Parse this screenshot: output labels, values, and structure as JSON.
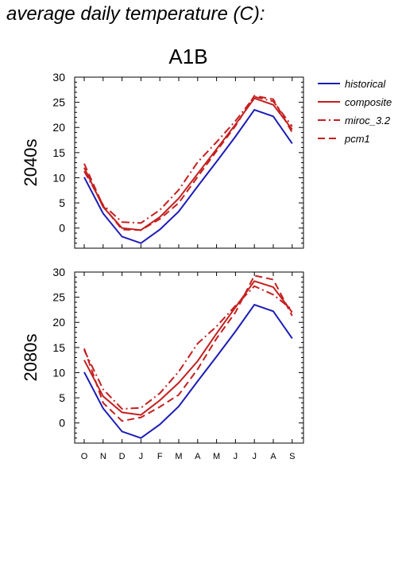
{
  "page_title": "average daily temperature (C):",
  "chart_data": {
    "type": "line",
    "title": "A1B",
    "categories": [
      "O",
      "N",
      "D",
      "J",
      "F",
      "M",
      "A",
      "M",
      "J",
      "J",
      "A",
      "S"
    ],
    "ylim": [
      -4,
      30
    ],
    "yticks": [
      0,
      5,
      10,
      15,
      20,
      25,
      30
    ],
    "grid": false,
    "legend_position": "right",
    "legend": [
      {
        "name": "historical",
        "color": "#1c1cb8",
        "dash": "solid"
      },
      {
        "name": "composite",
        "color": "#c42020",
        "dash": "solid"
      },
      {
        "name": "miroc_3.2",
        "color": "#c42020",
        "dash": "dashdot"
      },
      {
        "name": "pcm1",
        "color": "#c42020",
        "dash": "dash"
      }
    ],
    "panels": [
      {
        "ylabel": "2040s",
        "series": [
          {
            "name": "historical",
            "values": [
              10.1,
              2.9,
              -1.7,
              -3.0,
              -0.3,
              3.3,
              8.3,
              13.2,
              18.2,
              23.5,
              22.2,
              16.8
            ]
          },
          {
            "name": "composite",
            "values": [
              12.0,
              4.2,
              0.0,
              -0.4,
              2.2,
              5.9,
              10.8,
              15.7,
              20.6,
              25.8,
              24.5,
              19.6
            ]
          },
          {
            "name": "miroc_3.2",
            "values": [
              11.3,
              4.6,
              1.2,
              1.0,
              3.6,
              7.6,
              13.1,
              17.1,
              21.3,
              26.1,
              25.2,
              20.2
            ]
          },
          {
            "name": "pcm1",
            "values": [
              12.8,
              4.4,
              -0.3,
              -0.4,
              1.8,
              5.0,
              10.2,
              15.3,
              20.3,
              26.3,
              25.6,
              19.0
            ]
          }
        ]
      },
      {
        "ylabel": "2080s",
        "series": [
          {
            "name": "historical",
            "values": [
              10.1,
              2.9,
              -1.7,
              -3.0,
              -0.3,
              3.3,
              8.3,
              13.2,
              18.2,
              23.5,
              22.2,
              16.8
            ]
          },
          {
            "name": "composite",
            "values": [
              12.5,
              5.3,
              2.1,
              1.6,
              4.5,
              8.0,
              12.3,
              17.8,
              23.0,
              28.2,
              27.0,
              22.0
            ]
          },
          {
            "name": "miroc_3.2",
            "values": [
              14.5,
              6.7,
              2.8,
              3.0,
              5.9,
              10.2,
              15.8,
              19.2,
              23.3,
              27.2,
              25.5,
              22.5
            ]
          },
          {
            "name": "pcm1",
            "values": [
              14.8,
              4.0,
              0.4,
              1.1,
              3.2,
              5.6,
              10.7,
              16.8,
              22.0,
              29.3,
              28.5,
              21.3
            ]
          }
        ]
      }
    ]
  }
}
